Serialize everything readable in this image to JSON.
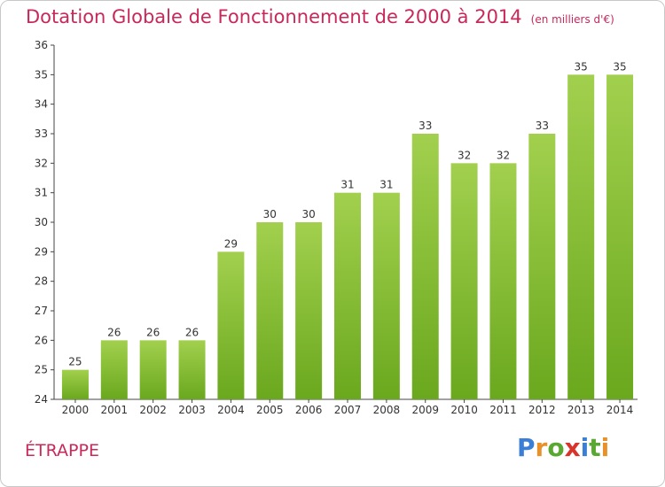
{
  "header": {
    "title": "Dotation Globale de Fonctionnement de 2000 à 2014",
    "unit": "(en milliers d'€)"
  },
  "commune": "ÉTRAPPE",
  "logo": {
    "text": "Proxiti",
    "letters": [
      "P",
      "r",
      "o",
      "x",
      "i",
      "t",
      "i"
    ],
    "colors": [
      "#3a7fd5",
      "#e8902a",
      "#5aa832",
      "#d8342c",
      "#3a7fd5",
      "#5aa832",
      "#e8902a"
    ]
  },
  "chart_data": {
    "type": "bar",
    "categories": [
      "2000",
      "2001",
      "2002",
      "2003",
      "2004",
      "2005",
      "2006",
      "2007",
      "2008",
      "2009",
      "2010",
      "2011",
      "2012",
      "2013",
      "2014"
    ],
    "values": [
      25,
      26,
      26,
      26,
      29,
      30,
      30,
      31,
      31,
      33,
      32,
      32,
      33,
      35,
      35
    ],
    "ylim": [
      24,
      36
    ],
    "yticks": [
      24,
      25,
      26,
      27,
      28,
      29,
      30,
      31,
      32,
      33,
      34,
      35,
      36
    ],
    "grid": false,
    "bar_color_top": "#a2d04e",
    "bar_color_bottom": "#6aa81e",
    "label_color": "#333333"
  }
}
